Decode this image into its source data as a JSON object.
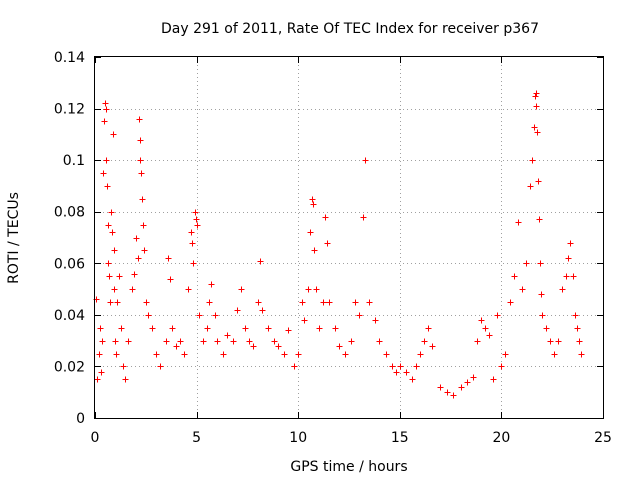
{
  "chart_data": {
    "type": "scatter",
    "title": "Day 291 of 2011, Rate Of TEC Index for receiver p367",
    "xlabel": "GPS time / hours",
    "ylabel": "ROTI / TECUs",
    "xlim": [
      0,
      25
    ],
    "ylim": [
      0,
      0.14
    ],
    "xticks": [
      0,
      5,
      10,
      15,
      20,
      25
    ],
    "xtick_labels": [
      "0",
      "5",
      "10",
      "15",
      "20",
      "25"
    ],
    "yticks": [
      0,
      0.02,
      0.04,
      0.06,
      0.08,
      0.1,
      0.12,
      0.14
    ],
    "ytick_labels": [
      "0",
      "0.02",
      "0.04",
      "0.06",
      "0.08",
      "0.1",
      "0.12",
      "0.14"
    ],
    "grid": true,
    "marker": "+",
    "color": "#ff0000",
    "series": [
      {
        "name": "ROTI",
        "points": [
          [
            0.05,
            0.046
          ],
          [
            0.1,
            0.015
          ],
          [
            0.2,
            0.025
          ],
          [
            0.25,
            0.035
          ],
          [
            0.3,
            0.018
          ],
          [
            0.35,
            0.03
          ],
          [
            0.4,
            0.095
          ],
          [
            0.45,
            0.115
          ],
          [
            0.5,
            0.122
          ],
          [
            0.52,
            0.12
          ],
          [
            0.55,
            0.1
          ],
          [
            0.6,
            0.09
          ],
          [
            0.62,
            0.075
          ],
          [
            0.65,
            0.06
          ],
          [
            0.7,
            0.055
          ],
          [
            0.75,
            0.045
          ],
          [
            0.8,
            0.08
          ],
          [
            0.85,
            0.072
          ],
          [
            0.9,
            0.11
          ],
          [
            0.92,
            0.065
          ],
          [
            0.95,
            0.05
          ],
          [
            1.0,
            0.03
          ],
          [
            1.05,
            0.025
          ],
          [
            1.1,
            0.045
          ],
          [
            1.2,
            0.055
          ],
          [
            1.3,
            0.035
          ],
          [
            1.4,
            0.02
          ],
          [
            1.5,
            0.015
          ],
          [
            1.6,
            0.03
          ],
          [
            1.8,
            0.05
          ],
          [
            1.9,
            0.056
          ],
          [
            2.0,
            0.07
          ],
          [
            2.1,
            0.062
          ],
          [
            2.15,
            0.116
          ],
          [
            2.2,
            0.108
          ],
          [
            2.22,
            0.1
          ],
          [
            2.25,
            0.095
          ],
          [
            2.3,
            0.085
          ],
          [
            2.35,
            0.075
          ],
          [
            2.4,
            0.065
          ],
          [
            2.5,
            0.045
          ],
          [
            2.6,
            0.04
          ],
          [
            2.8,
            0.035
          ],
          [
            3.0,
            0.025
          ],
          [
            3.2,
            0.02
          ],
          [
            3.5,
            0.03
          ],
          [
            3.6,
            0.062
          ],
          [
            3.7,
            0.054
          ],
          [
            3.8,
            0.035
          ],
          [
            4.0,
            0.028
          ],
          [
            4.2,
            0.03
          ],
          [
            4.4,
            0.025
          ],
          [
            4.6,
            0.05
          ],
          [
            4.7,
            0.072
          ],
          [
            4.75,
            0.068
          ],
          [
            4.8,
            0.06
          ],
          [
            4.9,
            0.08
          ],
          [
            4.95,
            0.077
          ],
          [
            5.0,
            0.075
          ],
          [
            5.1,
            0.04
          ],
          [
            5.3,
            0.03
          ],
          [
            5.5,
            0.035
          ],
          [
            5.6,
            0.045
          ],
          [
            5.7,
            0.052
          ],
          [
            5.9,
            0.04
          ],
          [
            6.0,
            0.03
          ],
          [
            6.3,
            0.025
          ],
          [
            6.5,
            0.032
          ],
          [
            6.8,
            0.03
          ],
          [
            7.0,
            0.042
          ],
          [
            7.2,
            0.05
          ],
          [
            7.4,
            0.035
          ],
          [
            7.6,
            0.03
          ],
          [
            7.8,
            0.028
          ],
          [
            8.0,
            0.045
          ],
          [
            8.1,
            0.061
          ],
          [
            8.2,
            0.042
          ],
          [
            8.5,
            0.035
          ],
          [
            8.8,
            0.03
          ],
          [
            9.0,
            0.028
          ],
          [
            9.3,
            0.025
          ],
          [
            9.5,
            0.034
          ],
          [
            9.8,
            0.02
          ],
          [
            10.0,
            0.025
          ],
          [
            10.2,
            0.045
          ],
          [
            10.3,
            0.038
          ],
          [
            10.5,
            0.05
          ],
          [
            10.6,
            0.072
          ],
          [
            10.7,
            0.085
          ],
          [
            10.75,
            0.083
          ],
          [
            10.8,
            0.065
          ],
          [
            10.9,
            0.05
          ],
          [
            11.0,
            0.035
          ],
          [
            11.2,
            0.045
          ],
          [
            11.3,
            0.078
          ],
          [
            11.4,
            0.068
          ],
          [
            11.5,
            0.045
          ],
          [
            11.8,
            0.035
          ],
          [
            12.0,
            0.028
          ],
          [
            12.3,
            0.025
          ],
          [
            12.6,
            0.03
          ],
          [
            12.8,
            0.045
          ],
          [
            13.0,
            0.04
          ],
          [
            13.2,
            0.078
          ],
          [
            13.3,
            0.1
          ],
          [
            13.5,
            0.045
          ],
          [
            13.8,
            0.038
          ],
          [
            14.0,
            0.03
          ],
          [
            14.3,
            0.025
          ],
          [
            14.6,
            0.02
          ],
          [
            14.8,
            0.018
          ],
          [
            15.0,
            0.02
          ],
          [
            15.3,
            0.018
          ],
          [
            15.6,
            0.015
          ],
          [
            15.8,
            0.02
          ],
          [
            16.0,
            0.025
          ],
          [
            16.2,
            0.03
          ],
          [
            16.4,
            0.035
          ],
          [
            16.6,
            0.028
          ],
          [
            17.0,
            0.012
          ],
          [
            17.3,
            0.01
          ],
          [
            17.6,
            0.009
          ],
          [
            18.0,
            0.012
          ],
          [
            18.3,
            0.014
          ],
          [
            18.6,
            0.016
          ],
          [
            18.8,
            0.03
          ],
          [
            19.0,
            0.038
          ],
          [
            19.2,
            0.035
          ],
          [
            19.4,
            0.032
          ],
          [
            19.6,
            0.015
          ],
          [
            19.8,
            0.04
          ],
          [
            20.0,
            0.02
          ],
          [
            20.2,
            0.025
          ],
          [
            20.4,
            0.045
          ],
          [
            20.6,
            0.055
          ],
          [
            20.8,
            0.076
          ],
          [
            21.0,
            0.05
          ],
          [
            21.2,
            0.06
          ],
          [
            21.4,
            0.09
          ],
          [
            21.5,
            0.1
          ],
          [
            21.6,
            0.113
          ],
          [
            21.65,
            0.125
          ],
          [
            21.7,
            0.126
          ],
          [
            21.72,
            0.121
          ],
          [
            21.75,
            0.111
          ],
          [
            21.8,
            0.092
          ],
          [
            21.85,
            0.077
          ],
          [
            21.9,
            0.06
          ],
          [
            21.95,
            0.048
          ],
          [
            22.0,
            0.04
          ],
          [
            22.2,
            0.035
          ],
          [
            22.4,
            0.03
          ],
          [
            22.6,
            0.025
          ],
          [
            22.8,
            0.03
          ],
          [
            23.0,
            0.05
          ],
          [
            23.2,
            0.055
          ],
          [
            23.3,
            0.062
          ],
          [
            23.4,
            0.068
          ],
          [
            23.5,
            0.055
          ],
          [
            23.6,
            0.04
          ],
          [
            23.7,
            0.035
          ],
          [
            23.8,
            0.03
          ],
          [
            23.9,
            0.025
          ]
        ]
      }
    ]
  }
}
